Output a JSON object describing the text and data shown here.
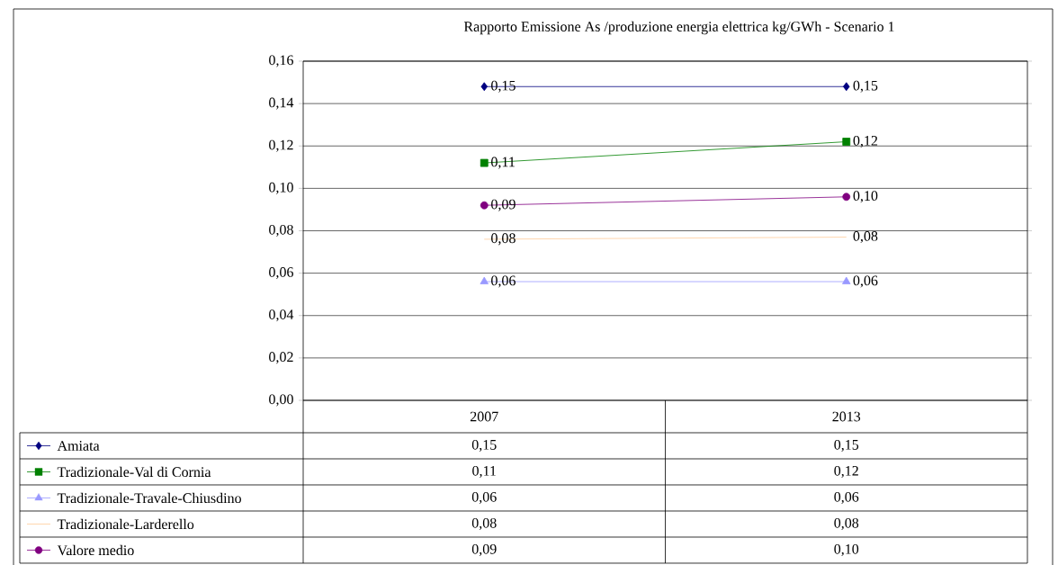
{
  "chart_data": {
    "type": "line",
    "title": "Rapporto Emissione As /produzione energia elettrica  kg/GWh - Scenario 1",
    "categories": [
      "2007",
      "2013"
    ],
    "ylim": [
      0,
      0.16
    ],
    "yticks": [
      {
        "value": 0,
        "label": "0,00"
      },
      {
        "value": 0.02,
        "label": "0,02"
      },
      {
        "value": 0.04,
        "label": "0,04"
      },
      {
        "value": 0.06,
        "label": "0,06"
      },
      {
        "value": 0.08,
        "label": "0,08"
      },
      {
        "value": 0.1,
        "label": "0,10"
      },
      {
        "value": 0.12,
        "label": "0,12"
      },
      {
        "value": 0.14,
        "label": "0,14"
      },
      {
        "value": 0.16,
        "label": "0,16"
      }
    ],
    "grid": "y",
    "legend": "bottom",
    "series": [
      {
        "name": "Amiata",
        "color": "#000080",
        "marker": "diamond",
        "values": [
          0.148,
          0.148
        ],
        "value_labels": [
          "0,15",
          "0,15"
        ]
      },
      {
        "name": "Tradizionale-Val di Cornia",
        "color": "#008000",
        "marker": "square",
        "values": [
          0.112,
          0.122
        ],
        "value_labels": [
          "0,11",
          "0,12"
        ]
      },
      {
        "name": "Tradizionale-Travale-Chiusdino",
        "color": "#9999ff",
        "marker": "triangle",
        "values": [
          0.056,
          0.056
        ],
        "value_labels": [
          "0,06",
          "0,06"
        ]
      },
      {
        "name": "Tradizionale-Larderello",
        "color": "#ffcc99",
        "marker": "none",
        "values": [
          0.076,
          0.077
        ],
        "value_labels": [
          "0,08",
          "0,08"
        ]
      },
      {
        "name": "Valore medio",
        "color": "#800080",
        "marker": "circle",
        "values": [
          0.092,
          0.096
        ],
        "value_labels": [
          "0,09",
          "0,10"
        ]
      }
    ]
  }
}
